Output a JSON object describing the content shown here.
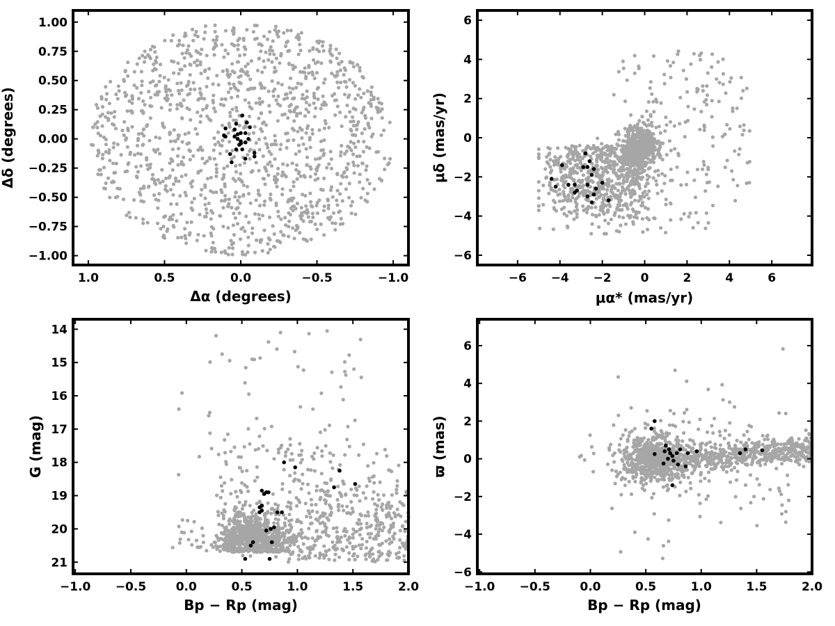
{
  "colors": {
    "field": "#a6a6a6",
    "member": "#000000",
    "frame": "#000000"
  },
  "chart_data": [
    {
      "id": "spatial",
      "type": "scatter",
      "xlabel": "Δα (degrees)",
      "ylabel": "Δδ (degrees)",
      "xlim": [
        1.1,
        -1.1
      ],
      "ylim": [
        -1.08,
        1.1
      ],
      "x_reversed": true,
      "xticks": [
        1.0,
        0.5,
        0.0,
        -0.5,
        -1.0
      ],
      "xtick_labels": [
        "1.0",
        "0.5",
        "0.0",
        "−0.5",
        "−1.0"
      ],
      "yticks": [
        -1.0,
        -0.75,
        -0.5,
        -0.25,
        0.0,
        0.25,
        0.5,
        0.75,
        1.0
      ],
      "ytick_labels": [
        "−1.00",
        "−0.75",
        "−0.50",
        "−0.25",
        "0.00",
        "0.25",
        "0.50",
        "0.75",
        "1.00"
      ],
      "grid": false,
      "series": [
        {
          "role": "field",
          "color": "#a6a6a6",
          "count": 1300,
          "distribution": "uniform disk, radius 1.0 deg, centered at (0, 0)"
        },
        {
          "role": "members",
          "color": "#000000",
          "points": [
            [
              0.1,
              0.09
            ],
            [
              0.1,
              0.02
            ],
            [
              0.11,
              0.03
            ],
            [
              0.03,
              0.13
            ],
            [
              0.04,
              0.02
            ],
            [
              0.0,
              0.05
            ],
            [
              0.02,
              0.04
            ],
            [
              -0.01,
              0.2
            ],
            [
              -0.03,
              0.05
            ],
            [
              -0.04,
              0.14
            ],
            [
              -0.06,
              0.1
            ],
            [
              -0.05,
              0.0
            ],
            [
              0.0,
              -0.02
            ],
            [
              0.01,
              -0.05
            ],
            [
              0.03,
              -0.09
            ],
            [
              -0.01,
              -0.09
            ],
            [
              -0.03,
              -0.17
            ],
            [
              0.07,
              -0.13
            ],
            [
              0.06,
              -0.2
            ],
            [
              -0.09,
              -0.12
            ],
            [
              -0.09,
              -0.15
            ],
            [
              0.0,
              -0.04
            ],
            [
              0.02,
              0.0
            ],
            [
              -0.03,
              -0.03
            ],
            [
              0.04,
              0.08
            ]
          ]
        }
      ]
    },
    {
      "id": "proper-motion",
      "type": "scatter",
      "xlabel": "μα* (mas/yr)",
      "ylabel": "μδ (mas/yr)",
      "xlim": [
        -7.9,
        7.9
      ],
      "ylim": [
        -6.5,
        6.5
      ],
      "xticks": [
        -6,
        -4,
        -2,
        0,
        2,
        4,
        6
      ],
      "xtick_labels": [
        "−6",
        "−4",
        "−2",
        "0",
        "2",
        "4",
        "6"
      ],
      "yticks": [
        -6,
        -4,
        -2,
        0,
        2,
        4,
        6
      ],
      "ytick_labels": [
        "−6",
        "−4",
        "−2",
        "0",
        "2",
        "4",
        "6"
      ],
      "grid": false,
      "series": [
        {
          "role": "field",
          "color": "#a6a6a6",
          "count": 1300,
          "distribution": "dense clump at (-0.2, -0.4); broad arc toward (-2.5, -2.5); sparse scatter to x = 5, y from -5 to 4.6"
        },
        {
          "role": "members",
          "color": "#000000",
          "points": [
            [
              -3.9,
              -1.4
            ],
            [
              -2.8,
              -0.8
            ],
            [
              -2.6,
              -1.2
            ],
            [
              -2.7,
              -1.5
            ],
            [
              -2.4,
              -1.6
            ],
            [
              -2.5,
              -1.9
            ],
            [
              -2.3,
              -2.6
            ],
            [
              -2.0,
              -2.3
            ],
            [
              -2.7,
              -2.4
            ],
            [
              -3.3,
              -2.4
            ],
            [
              -3.6,
              -2.4
            ],
            [
              -4.4,
              -2.1
            ],
            [
              -4.2,
              -2.5
            ],
            [
              -3.3,
              -2.8
            ],
            [
              -3.2,
              -2.7
            ],
            [
              -2.7,
              -3.0
            ],
            [
              -2.5,
              -3.3
            ],
            [
              -2.4,
              -2.9
            ],
            [
              -1.7,
              -3.2
            ],
            [
              -2.9,
              -1.5
            ]
          ]
        }
      ]
    },
    {
      "id": "cmd",
      "type": "scatter",
      "xlabel": "Bp − Rp (mag)",
      "ylabel": "G (mag)",
      "xlim": [
        -1.02,
        2.0
      ],
      "ylim": [
        21.35,
        13.7
      ],
      "y_reversed": true,
      "xticks": [
        -1.0,
        -0.5,
        0.0,
        0.5,
        1.0,
        1.5,
        2.0
      ],
      "xtick_labels": [
        "−1.0",
        "−0.5",
        "0.0",
        "0.5",
        "1.0",
        "1.5",
        "2.0"
      ],
      "yticks": [
        14,
        15,
        16,
        17,
        18,
        19,
        20,
        21
      ],
      "ytick_labels": [
        "14",
        "15",
        "16",
        "17",
        "18",
        "19",
        "20",
        "21"
      ],
      "grid": false,
      "series": [
        {
          "role": "field",
          "color": "#a6a6a6",
          "count": 1300,
          "distribution": "dense band at G 19.5-21.0, Bp-Rp 0.3-1.0; faint red tail to Bp-Rp 2.0; sparse points to G 14"
        },
        {
          "role": "members",
          "color": "#000000",
          "points": [
            [
              0.53,
              20.9
            ],
            [
              0.75,
              20.9
            ],
            [
              0.58,
              20.5
            ],
            [
              0.6,
              20.4
            ],
            [
              0.77,
              20.4
            ],
            [
              0.72,
              20.05
            ],
            [
              0.76,
              20.0
            ],
            [
              0.79,
              19.95
            ],
            [
              0.66,
              19.5
            ],
            [
              0.68,
              19.45
            ],
            [
              0.82,
              19.5
            ],
            [
              0.86,
              19.5
            ],
            [
              0.66,
              19.35
            ],
            [
              0.68,
              19.3
            ],
            [
              0.7,
              18.95
            ],
            [
              0.72,
              18.9
            ],
            [
              0.68,
              18.85
            ],
            [
              1.33,
              18.75
            ],
            [
              1.52,
              18.65
            ],
            [
              1.38,
              18.25
            ],
            [
              0.98,
              18.15
            ],
            [
              0.88,
              18.0
            ],
            [
              0.74,
              18.9
            ]
          ]
        }
      ]
    },
    {
      "id": "parallax",
      "type": "scatter",
      "xlabel": "Bp − Rp (mag)",
      "ylabel": "ϖ (mas)",
      "xlim": [
        -1.02,
        2.0
      ],
      "ylim": [
        -6.1,
        7.4
      ],
      "xticks": [
        -1.0,
        -0.5,
        0.0,
        0.5,
        1.0,
        1.5,
        2.0
      ],
      "xtick_labels": [
        "−1.0",
        "−0.5",
        "0.0",
        "0.5",
        "1.0",
        "1.5",
        "2.0"
      ],
      "yticks": [
        -6,
        -4,
        -2,
        0,
        2,
        4,
        6
      ],
      "ytick_labels": [
        "−6",
        "−4",
        "−2",
        "0",
        "2",
        "4",
        "6"
      ],
      "grid": false,
      "series": [
        {
          "role": "field",
          "color": "#a6a6a6",
          "count": 1300,
          "distribution": "dense clump at (0.6, 0.0); band rising to 0.6 mas at Bp-Rp 2.0; scatter from -5.5 to 6.8 mas"
        },
        {
          "role": "members",
          "color": "#000000",
          "points": [
            [
              0.58,
              2.0
            ],
            [
              0.55,
              1.6
            ],
            [
              0.68,
              0.7
            ],
            [
              0.71,
              0.5
            ],
            [
              0.67,
              0.4
            ],
            [
              0.72,
              0.3
            ],
            [
              0.74,
              0.15
            ],
            [
              0.78,
              0.3
            ],
            [
              0.81,
              0.5
            ],
            [
              0.88,
              0.3
            ],
            [
              0.96,
              0.4
            ],
            [
              0.58,
              0.25
            ],
            [
              0.7,
              0.0
            ],
            [
              0.75,
              -0.1
            ],
            [
              0.79,
              -0.3
            ],
            [
              0.86,
              -0.4
            ],
            [
              0.74,
              -1.4
            ],
            [
              1.35,
              0.3
            ],
            [
              1.4,
              0.5
            ],
            [
              1.55,
              0.45
            ],
            [
              0.66,
              -0.25
            ]
          ]
        }
      ]
    }
  ]
}
